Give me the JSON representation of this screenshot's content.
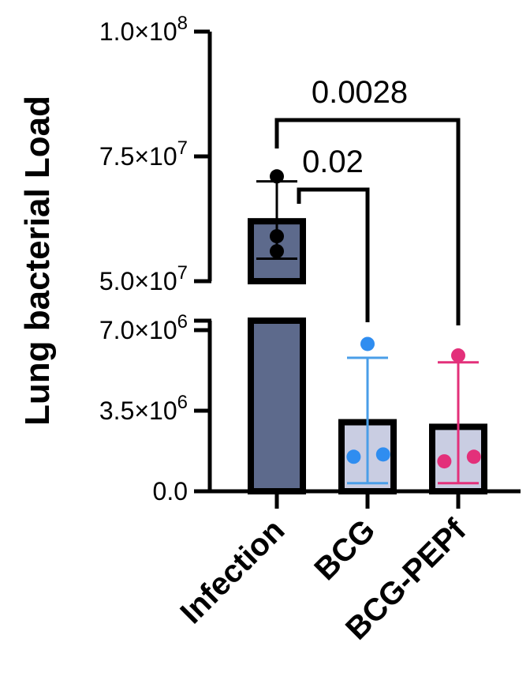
{
  "chart_data": {
    "type": "bar",
    "ylabel": "Lung bacterial Load",
    "categories": [
      "Infection",
      "BCG",
      "BCG-PEPf"
    ],
    "y_axis_break": true,
    "y_segments": [
      {
        "range": [
          0,
          7000000
        ],
        "ticks": [
          {
            "value": 0,
            "label": "0.0"
          },
          {
            "value": 3500000,
            "label": "3.5×10",
            "exp": "6"
          },
          {
            "value": 7000000,
            "label": "7.0×10",
            "exp": "6"
          }
        ]
      },
      {
        "range": [
          50000000,
          100000000
        ],
        "ticks": [
          {
            "value": 50000000,
            "label": "5.0×10",
            "exp": "7"
          },
          {
            "value": 75000000,
            "label": "7.5×10",
            "exp": "7"
          },
          {
            "value": 100000000,
            "label": "1.0×10",
            "exp": "8"
          }
        ]
      }
    ],
    "bars": [
      {
        "category": "Infection",
        "mean": 62000000,
        "sd_low": 54500000,
        "sd_high": 70000000,
        "points": [
          71000000,
          59000000,
          56000000
        ],
        "fill": "#5d6a8c",
        "point_color": "#000000",
        "error_color": "#000000"
      },
      {
        "category": "BCG",
        "mean": 3000000,
        "sd_low": 350000,
        "sd_high": 5800000,
        "points": [
          6400000,
          1500000,
          1600000
        ],
        "fill": "#c9cde2",
        "point_color": "#2f8df0",
        "error_color": "#4a9ee8"
      },
      {
        "category": "BCG-PEPf",
        "mean": 2800000,
        "sd_low": 350000,
        "sd_high": 5600000,
        "points": [
          5900000,
          1300000,
          1500000
        ],
        "fill": "#c9cde2",
        "point_color": "#e3307a",
        "error_color": "#e3307a"
      }
    ],
    "comparisons": [
      {
        "from": "Infection",
        "to": "BCG",
        "label": "0.02"
      },
      {
        "from": "Infection",
        "to": "BCG-PEPf",
        "label": "0.0028"
      }
    ]
  }
}
